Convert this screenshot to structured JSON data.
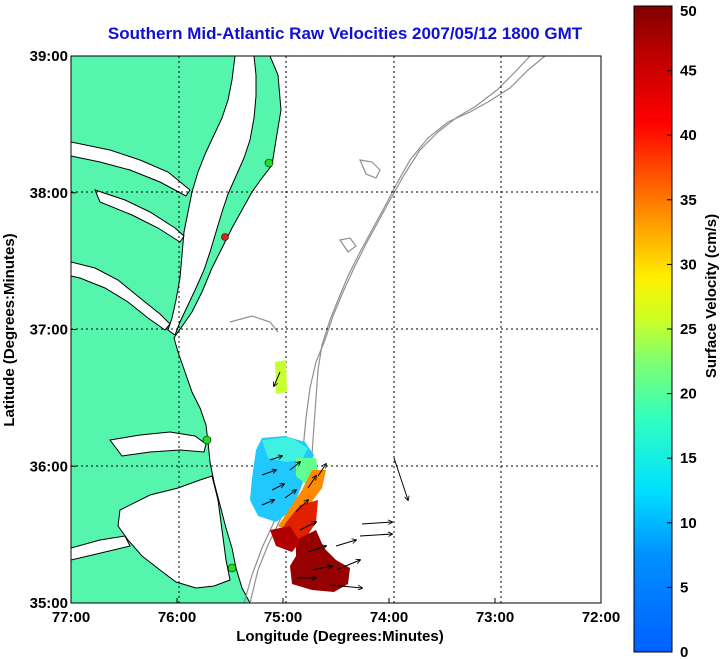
{
  "title": "Southern Mid-Atlantic Raw Velocities 2007/05/12 1800 GMT",
  "x_axis_label": "Longitude (Degrees:Minutes)",
  "y_axis_label": "Latitude (Degrees:Minutes)",
  "colorbar_label": "Surface Velocity (cm/s)",
  "colors": {
    "land": "#55f5ae",
    "coastline": "#000000",
    "bathymetry": "#909090",
    "title": "#1010d0",
    "station_active": "#22dd22",
    "station_red": "#dd2222"
  },
  "chart_data": {
    "type": "map",
    "xlim": [
      -77,
      -72
    ],
    "ylim": [
      35,
      39
    ],
    "x_ticks": [
      {
        "value": -77,
        "label": "77:00"
      },
      {
        "value": -76,
        "label": "76:00"
      },
      {
        "value": -75,
        "label": "75:00"
      },
      {
        "value": -74,
        "label": "74:00"
      },
      {
        "value": -73,
        "label": "73:00"
      },
      {
        "value": -72,
        "label": "72:00"
      }
    ],
    "y_ticks": [
      {
        "value": 39,
        "label": "39:00"
      },
      {
        "value": 38,
        "label": "38:00"
      },
      {
        "value": 37,
        "label": "37:00"
      },
      {
        "value": 36,
        "label": "36:00"
      },
      {
        "value": 35,
        "label": "35:00"
      }
    ],
    "grid": true,
    "colorbar": {
      "min": 0,
      "max": 50,
      "ticks": [
        0,
        5,
        10,
        15,
        20,
        25,
        30,
        35,
        40,
        45,
        50
      ],
      "colormap": "jet",
      "units": "cm/s"
    },
    "stations": [
      {
        "lon": -75.15,
        "lat": 38.22,
        "color": "green"
      },
      {
        "lon": -75.42,
        "lat": 37.65,
        "color": "red"
      },
      {
        "lon": -75.68,
        "lat": 36.19,
        "color": "green"
      },
      {
        "lon": -75.5,
        "lat": 35.26,
        "color": "green"
      }
    ],
    "velocity_vectors": [
      {
        "lon": -74.12,
        "lat": 36.1,
        "speed": 12,
        "bearing": 165
      },
      {
        "lon": -74.25,
        "lat": 35.63,
        "speed": 15,
        "bearing": 80
      },
      {
        "lon": -74.25,
        "lat": 35.55,
        "speed": 15,
        "bearing": 85
      },
      {
        "lon": -74.5,
        "lat": 35.52,
        "speed": 30,
        "bearing": 75
      },
      {
        "lon": -74.6,
        "lat": 35.4,
        "speed": 40,
        "bearing": 60
      },
      {
        "lon": -74.55,
        "lat": 35.27,
        "speed": 45,
        "bearing": 95
      },
      {
        "lon": -74.5,
        "lat": 35.2,
        "speed": 45,
        "bearing": 100
      }
    ],
    "velocity_patches": [
      {
        "region": "offshore-south",
        "speed_range_cms": [
          5,
          48
        ]
      },
      {
        "region": "near-36.5N",
        "speed_range_cms": [
          20,
          25
        ]
      }
    ]
  }
}
